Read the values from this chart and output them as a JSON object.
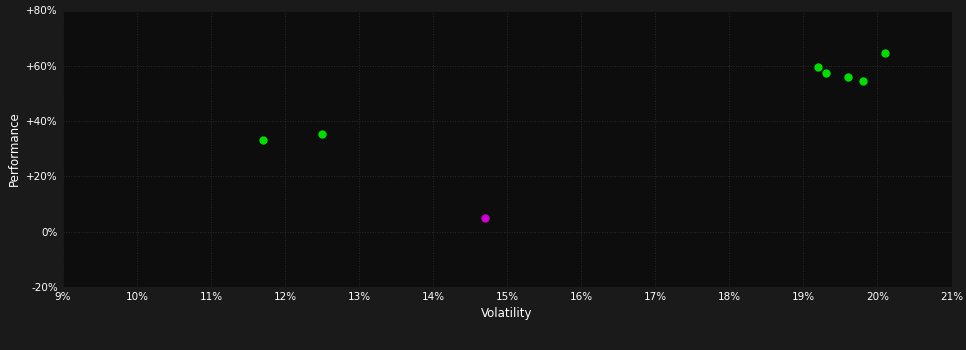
{
  "background_color": "#1a1a1a",
  "plot_bg_color": "#0d0d0d",
  "grid_color": "#2a2a2a",
  "text_color": "#ffffff",
  "xlabel": "Volatility",
  "ylabel": "Performance",
  "xlim": [
    0.09,
    0.21
  ],
  "ylim": [
    -0.2,
    0.8
  ],
  "xticks": [
    0.09,
    0.1,
    0.11,
    0.12,
    0.13,
    0.14,
    0.15,
    0.16,
    0.17,
    0.18,
    0.19,
    0.2,
    0.21
  ],
  "yticks": [
    -0.2,
    0.0,
    0.2,
    0.4,
    0.6,
    0.8
  ],
  "ytick_labels": [
    "-20%",
    "0%",
    "+20%",
    "+40%",
    "+60%",
    "+80%"
  ],
  "xtick_labels": [
    "9%",
    "10%",
    "11%",
    "12%",
    "13%",
    "14%",
    "15%",
    "16%",
    "17%",
    "18%",
    "19%",
    "20%",
    "21%"
  ],
  "green_points": [
    [
      0.117,
      0.33
    ],
    [
      0.125,
      0.355
    ],
    [
      0.192,
      0.595
    ],
    [
      0.193,
      0.575
    ],
    [
      0.196,
      0.56
    ],
    [
      0.198,
      0.545
    ],
    [
      0.201,
      0.645
    ]
  ],
  "magenta_points": [
    [
      0.147,
      0.05
    ]
  ],
  "green_color": "#00dd00",
  "magenta_color": "#cc00cc",
  "marker_size": 6
}
